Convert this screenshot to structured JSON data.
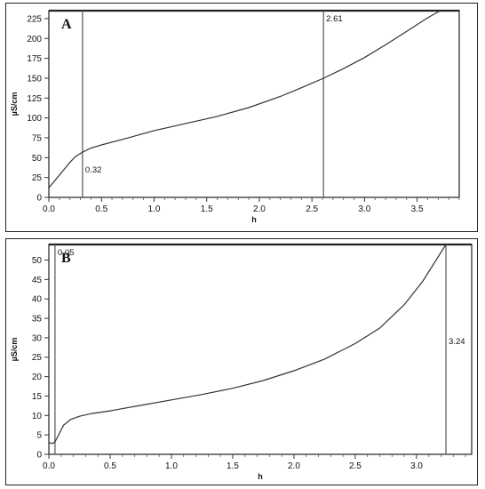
{
  "chart_data": [
    {
      "type": "line",
      "panel_label": "A",
      "xlabel": "h",
      "ylabel": "µS/cm",
      "xlim": [
        0,
        3.9
      ],
      "ylim": [
        0,
        235
      ],
      "x_ticks": [
        "0.0",
        "0.5",
        "1.0",
        "1.5",
        "2.0",
        "2.5",
        "3.0",
        "3.5"
      ],
      "y_ticks": [
        "0",
        "25",
        "50",
        "75",
        "100",
        "125",
        "150",
        "175",
        "200",
        "225"
      ],
      "series": [
        {
          "x": [
            0.0,
            0.05,
            0.1,
            0.15,
            0.2,
            0.25,
            0.32,
            0.4,
            0.5,
            0.7,
            1.0,
            1.3,
            1.6,
            1.9,
            2.2,
            2.4,
            2.61,
            2.8,
            3.0,
            3.2,
            3.4,
            3.6,
            3.72
          ],
          "y": [
            12,
            20,
            28,
            36,
            44,
            51,
            57,
            62,
            66,
            73,
            84,
            93,
            102,
            113,
            127,
            138,
            150,
            162,
            176,
            192,
            209,
            226,
            235
          ]
        }
      ],
      "markers": [
        {
          "x": 0.32,
          "label": "0.32"
        },
        {
          "x": 2.61,
          "label": "2.61"
        }
      ],
      "grid": false
    },
    {
      "type": "line",
      "panel_label": "B",
      "xlabel": "h",
      "ylabel": "µS/cm",
      "xlim": [
        0,
        3.45
      ],
      "ylim": [
        0,
        54
      ],
      "x_ticks": [
        "0.0",
        "0.5",
        "1.0",
        "1.5",
        "2.0",
        "2.5",
        "3.0"
      ],
      "y_ticks": [
        "0",
        "5",
        "10",
        "15",
        "20",
        "25",
        "30",
        "35",
        "40",
        "45",
        "50"
      ],
      "series": [
        {
          "x": [
            0.0,
            0.03,
            0.05,
            0.08,
            0.12,
            0.18,
            0.25,
            0.35,
            0.5,
            0.75,
            1.0,
            1.25,
            1.5,
            1.75,
            2.0,
            2.25,
            2.5,
            2.7,
            2.9,
            3.05,
            3.15,
            3.24
          ],
          "y": [
            3.0,
            2.8,
            3.2,
            5.0,
            7.5,
            9.0,
            9.8,
            10.5,
            11.2,
            12.6,
            14.0,
            15.4,
            17.0,
            19.0,
            21.5,
            24.5,
            28.5,
            32.5,
            38.5,
            44.5,
            49.5,
            54.0
          ]
        }
      ],
      "markers": [
        {
          "x": 0.05,
          "label": "0.05"
        },
        {
          "x": 3.24,
          "label": "3.24"
        }
      ],
      "grid": false
    }
  ]
}
